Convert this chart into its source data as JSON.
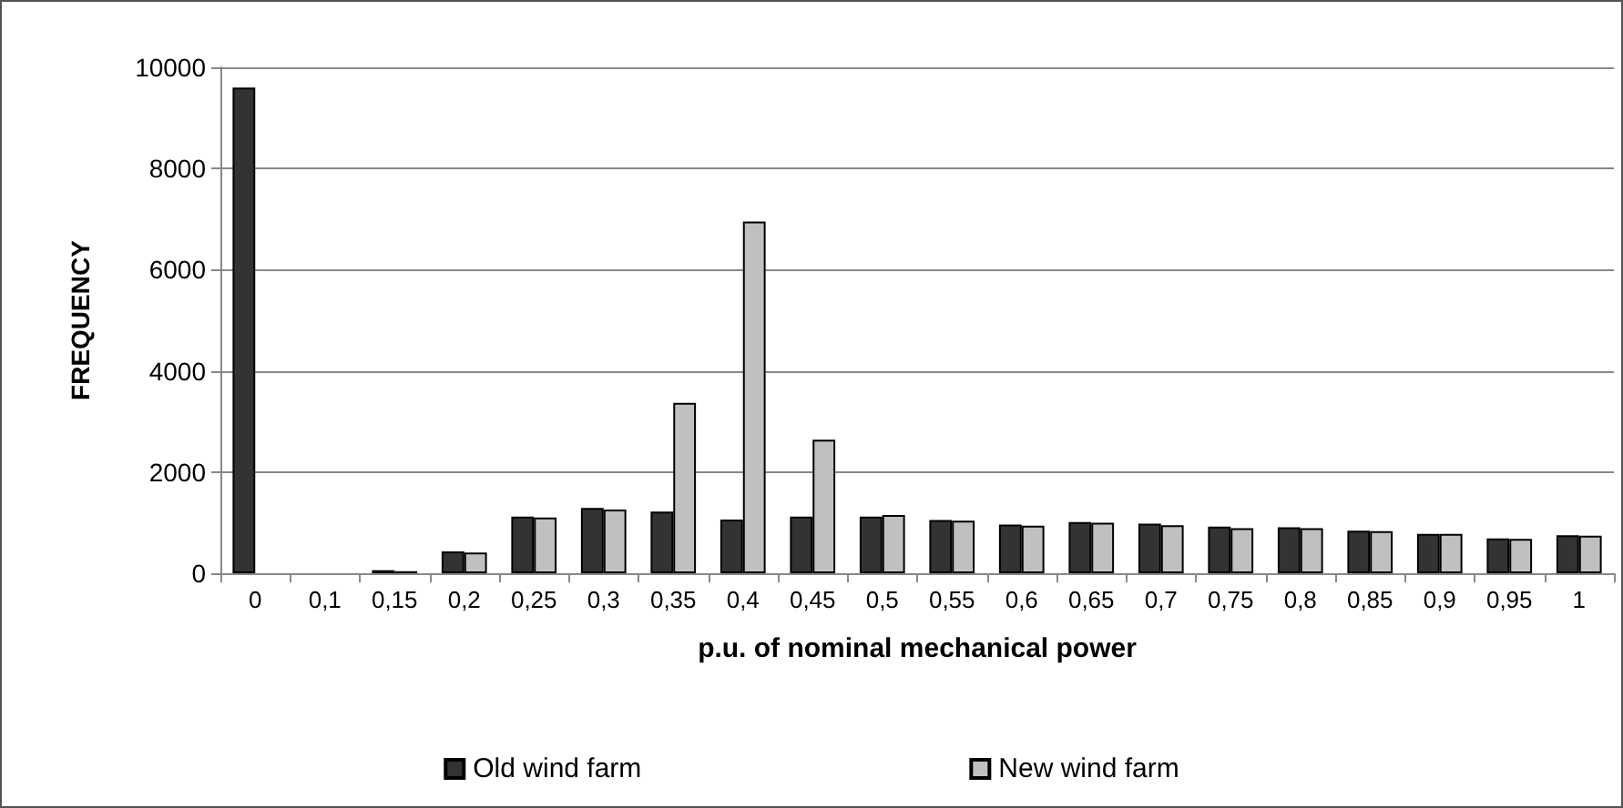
{
  "chart_data": {
    "type": "bar",
    "xlabel": "p.u. of nominal mechanical power",
    "ylabel": "FREQUENCY",
    "categories": [
      "0",
      "0,1",
      "0,15",
      "0,2",
      "0,25",
      "0,3",
      "0,35",
      "0,4",
      "0,45",
      "0,5",
      "0,55",
      "0,6",
      "0,65",
      "0,7",
      "0,75",
      "0,8",
      "0,85",
      "0,9",
      "0,95",
      "1"
    ],
    "series": [
      {
        "name": "Old wind farm",
        "color": "#333333",
        "values": [
          9600,
          0,
          60,
          430,
          1120,
          1290,
          1220,
          1060,
          1120,
          1120,
          1050,
          960,
          1010,
          980,
          920,
          910,
          840,
          780,
          690,
          750
        ]
      },
      {
        "name": "New wind farm",
        "color": "#c0c0c0",
        "values": [
          0,
          0,
          40,
          410,
          1100,
          1260,
          3370,
          6950,
          2640,
          1150,
          1040,
          940,
          1000,
          950,
          890,
          890,
          830,
          780,
          680,
          740
        ]
      }
    ],
    "ylim": [
      0,
      10000
    ],
    "yticks": [
      0,
      2000,
      4000,
      6000,
      8000,
      10000
    ],
    "grid": "y",
    "legend": "bottom"
  }
}
